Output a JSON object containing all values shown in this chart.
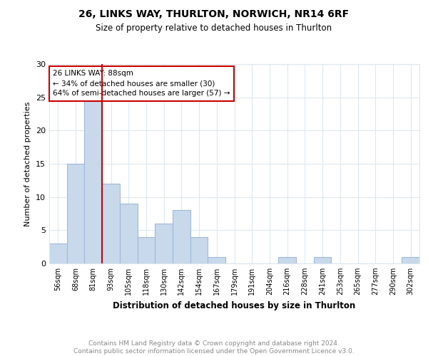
{
  "title": "26, LINKS WAY, THURLTON, NORWICH, NR14 6RF",
  "subtitle": "Size of property relative to detached houses in Thurlton",
  "xlabel": "Distribution of detached houses by size in Thurlton",
  "ylabel": "Number of detached properties",
  "categories": [
    "56sqm",
    "68sqm",
    "81sqm",
    "93sqm",
    "105sqm",
    "118sqm",
    "130sqm",
    "142sqm",
    "154sqm",
    "167sqm",
    "179sqm",
    "191sqm",
    "204sqm",
    "216sqm",
    "228sqm",
    "241sqm",
    "253sqm",
    "265sqm",
    "277sqm",
    "290sqm",
    "302sqm"
  ],
  "values": [
    3,
    15,
    25,
    12,
    9,
    4,
    6,
    8,
    4,
    1,
    0,
    0,
    0,
    1,
    0,
    1,
    0,
    0,
    0,
    0,
    1
  ],
  "bar_color": "#c9d9ec",
  "bar_edge_color": "#a0b8d8",
  "subject_line_color": "#cc0000",
  "annotation_text": "26 LINKS WAY: 88sqm\n← 34% of detached houses are smaller (30)\n64% of semi-detached houses are larger (57) →",
  "annotation_box_color": "#cc0000",
  "ylim": [
    0,
    30
  ],
  "yticks": [
    0,
    5,
    10,
    15,
    20,
    25,
    30
  ],
  "footer": "Contains HM Land Registry data © Crown copyright and database right 2024.\nContains public sector information licensed under the Open Government Licence v3.0.",
  "footer_color": "#888888",
  "grid_color": "#dde8f0"
}
